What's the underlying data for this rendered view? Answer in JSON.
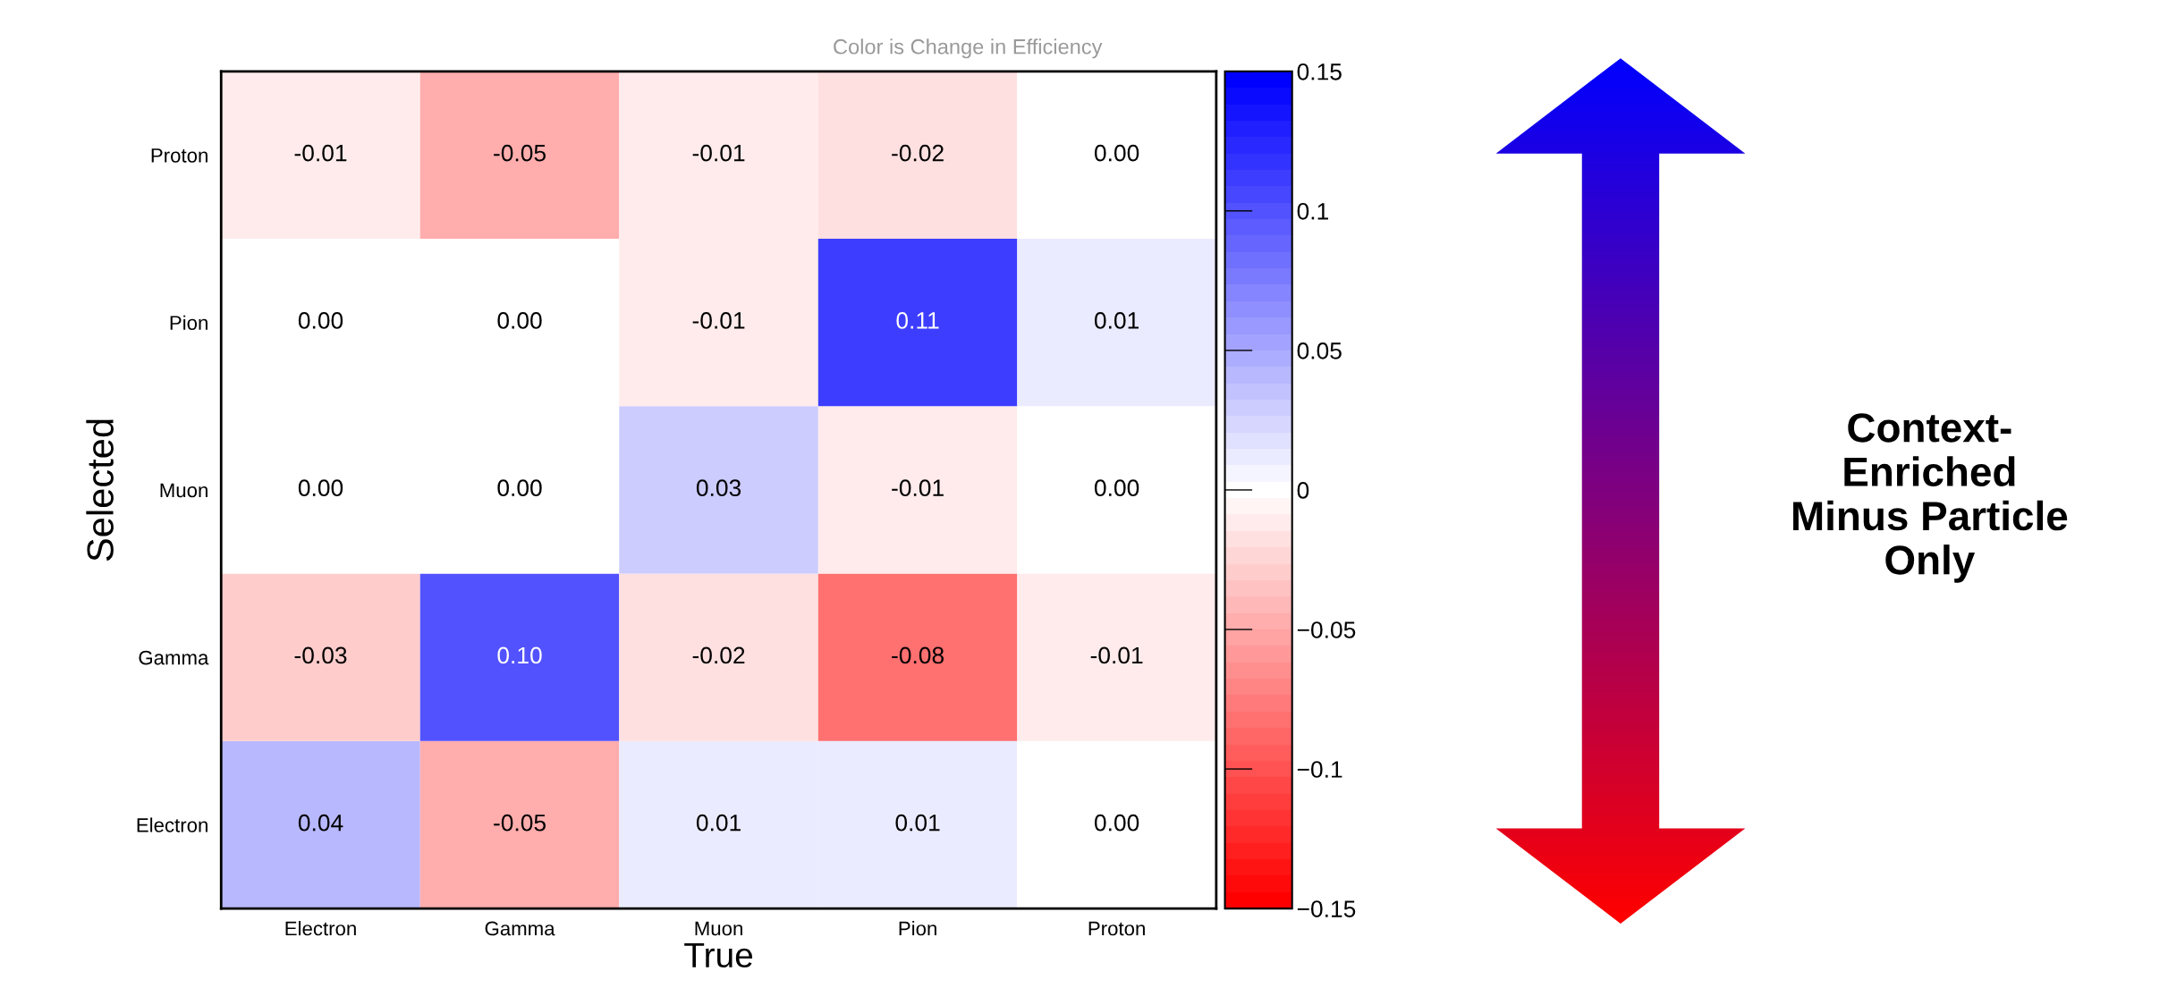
{
  "chart_data": {
    "type": "heatmap",
    "title": "Color is Change in Efficiency",
    "xlabel": "True",
    "ylabel": "Selected",
    "categories": [
      "Electron",
      "Gamma",
      "Muon",
      "Pion",
      "Proton"
    ],
    "y_categories": [
      "Proton",
      "Pion",
      "Muon",
      "Gamma",
      "Electron"
    ],
    "cells": [
      [
        -0.01,
        -0.05,
        -0.01,
        -0.02,
        0.0
      ],
      [
        0.0,
        0.0,
        -0.01,
        0.11,
        0.01
      ],
      [
        0.0,
        0.0,
        0.03,
        -0.01,
        0.0
      ],
      [
        -0.03,
        0.1,
        -0.02,
        -0.08,
        -0.01
      ],
      [
        0.04,
        -0.05,
        0.01,
        0.01,
        0.0
      ]
    ],
    "data_labels": true,
    "cell_labels": [
      [
        "-0.01",
        "-0.05",
        "-0.01",
        "-0.02",
        "0.00"
      ],
      [
        "0.00",
        "0.00",
        "-0.01",
        "0.11",
        "0.01"
      ],
      [
        "0.00",
        "0.00",
        "0.03",
        "-0.01",
        "0.00"
      ],
      [
        "-0.03",
        "0.10",
        "-0.02",
        "-0.08",
        "-0.01"
      ],
      [
        "0.04",
        "-0.05",
        "0.01",
        "0.01",
        "0.00"
      ]
    ],
    "clim": [
      -0.15,
      0.15
    ],
    "cticks": [
      0.15,
      0.1,
      0.05,
      0,
      {
        "value": -0.05,
        "label": "−0.05"
      },
      {
        "value": -0.1,
        "label": "−0.1"
      },
      {
        "value": -0.15,
        "label": "−0.15"
      }
    ],
    "annotations": [
      "Context-\nEnriched\nMinus Particle\nOnly"
    ]
  }
}
